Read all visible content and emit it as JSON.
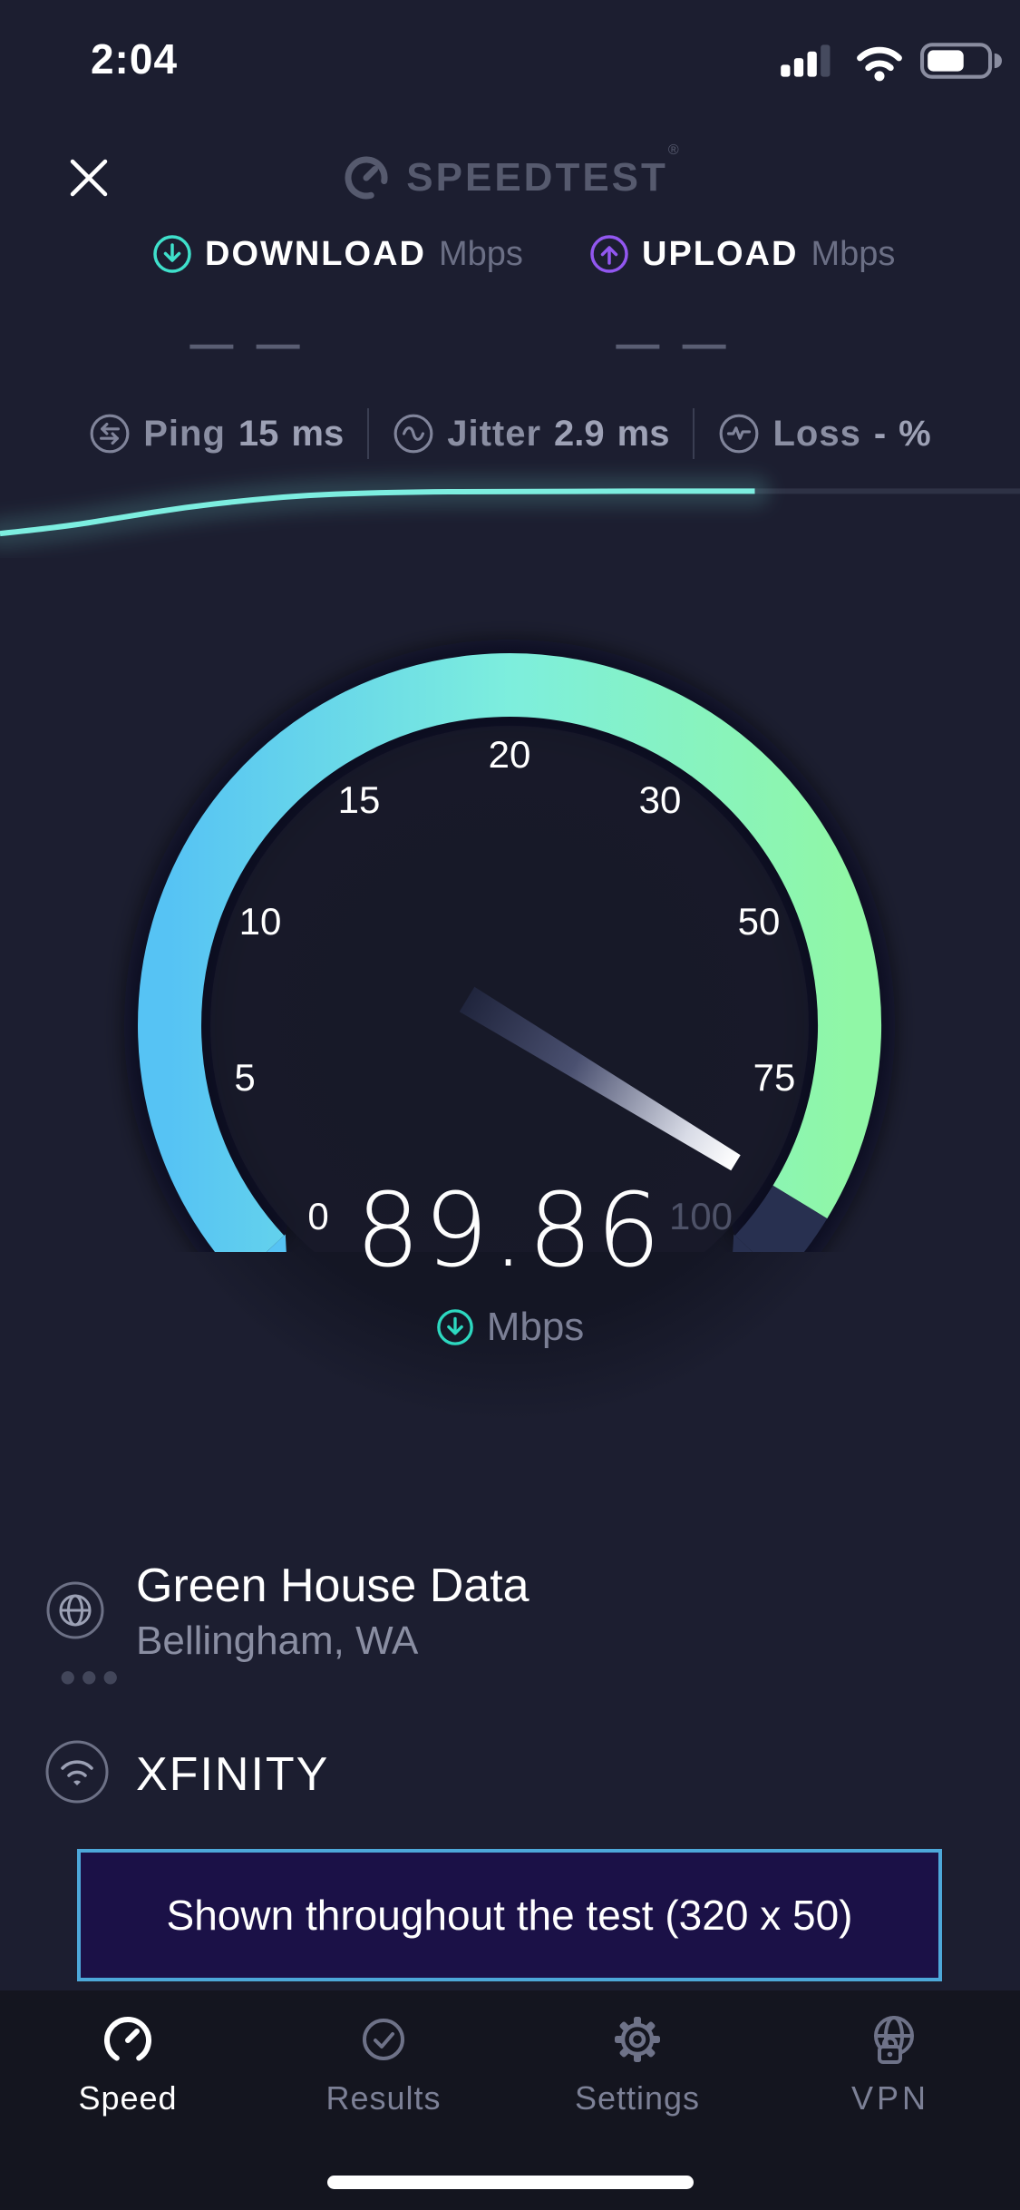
{
  "app": {
    "name": "Speedtest"
  },
  "status_bar": {
    "time": "2:04"
  },
  "header": {
    "logo_text": "SPEEDTEST",
    "logo_reg": "®"
  },
  "metrics": {
    "download": {
      "label": "DOWNLOAD",
      "unit": "Mbps",
      "placeholder": "— —"
    },
    "upload": {
      "label": "UPLOAD",
      "unit": "Mbps",
      "placeholder": "— —"
    }
  },
  "stats": [
    {
      "label": "Ping",
      "value": "15",
      "unit": "ms"
    },
    {
      "label": "Jitter",
      "value": "2.9",
      "unit": "ms"
    },
    {
      "label": "Loss",
      "value": "-",
      "unit": "%"
    }
  ],
  "result": {
    "value": "89.86",
    "unit": "Mbps"
  },
  "server": {
    "name": "Green House Data",
    "location": "Bellingham, WA",
    "more": "•••"
  },
  "isp": {
    "name": "XFINITY"
  },
  "ad_banner": {
    "text": "Shown throughout the test (320 x 50)"
  },
  "tab_bar": {
    "active": "Speed",
    "items": [
      {
        "label": "Speed",
        "icon": "speedometer-icon"
      },
      {
        "label": "Results",
        "icon": "check-circle-icon"
      },
      {
        "label": "Settings",
        "icon": "gear-icon"
      },
      {
        "label": "VPN",
        "icon": "globe-lock-icon"
      }
    ]
  },
  "colors": {
    "background": "#1c1e30",
    "tabbar_background": "#14151f",
    "accent_teal": "#3fe0cb",
    "accent_purple": "#9257f0",
    "sparkline": "#7deee0",
    "sparkline_track": "#2e3245",
    "gauge_blue": "#56c3f4",
    "gauge_aqua": "#7deedd",
    "gauge_green": "#90f7a6",
    "gauge_remainder": "#283050",
    "banner_border": "#4da8da",
    "banner_background": "#1b1147",
    "muted_text": "#8a8ea2",
    "dim_text": "#565a6e"
  },
  "chart_data": [
    {
      "type": "line",
      "name": "download-speed-sparkline",
      "title": "live download speed during test (axes unlabeled)",
      "points_frac": [
        [
          0,
          0.17
        ],
        [
          0.06,
          0.28
        ],
        [
          0.12,
          0.45
        ],
        [
          0.18,
          0.62
        ],
        [
          0.24,
          0.74
        ],
        [
          0.3,
          0.83
        ],
        [
          0.38,
          0.88
        ],
        [
          0.5,
          0.9
        ],
        [
          0.74,
          0.9
        ]
      ],
      "progress_fraction": 0.74,
      "line_color": "#7deee0",
      "track_color": "#2e3245"
    },
    {
      "type": "gauge",
      "name": "download-speed-gauge",
      "ticks": [
        0,
        5,
        10,
        15,
        20,
        30,
        50,
        75,
        100
      ],
      "value": 89.86,
      "unit": "Mbps",
      "start_angle": -135,
      "end_angle": 135,
      "arc_gradient": [
        "#56c3f4",
        "#7deedd",
        "#90f7a6"
      ],
      "remainder_color": "#283050",
      "muted_tick": "100",
      "tick_color": "#ffffff",
      "muted_tick_color": "#4e5268"
    }
  ]
}
